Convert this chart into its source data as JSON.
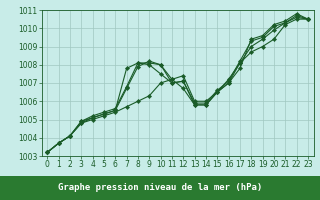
{
  "title": "Graphe pression niveau de la mer (hPa)",
  "bg_color": "#c8ece8",
  "grid_color": "#a0c8c0",
  "line_color": "#1a5c28",
  "xlim": [
    -0.5,
    23.5
  ],
  "ylim": [
    1003,
    1011
  ],
  "xticks": [
    0,
    1,
    2,
    3,
    4,
    5,
    6,
    7,
    8,
    9,
    10,
    11,
    12,
    13,
    14,
    15,
    16,
    17,
    18,
    19,
    20,
    21,
    22,
    23
  ],
  "yticks": [
    1003,
    1004,
    1005,
    1006,
    1007,
    1008,
    1009,
    1010,
    1011
  ],
  "series": [
    [
      1003.2,
      1003.7,
      1004.1,
      1004.8,
      1005.0,
      1005.2,
      1005.4,
      1005.7,
      1006.0,
      1006.3,
      1007.0,
      1007.2,
      1007.4,
      1006.0,
      1006.0,
      1006.5,
      1007.2,
      1008.1,
      1008.7,
      1009.0,
      1009.4,
      1010.2,
      1010.5,
      1010.5
    ],
    [
      1003.2,
      1003.7,
      1004.1,
      1004.8,
      1005.1,
      1005.3,
      1005.5,
      1007.8,
      1008.1,
      1008.0,
      1007.5,
      1007.0,
      1007.1,
      1005.8,
      1005.8,
      1006.5,
      1007.0,
      1008.1,
      1009.0,
      1009.4,
      1009.9,
      1010.3,
      1010.6,
      1010.5
    ],
    [
      1003.2,
      1003.7,
      1004.1,
      1004.9,
      1005.1,
      1005.3,
      1005.5,
      1006.7,
      1007.9,
      1008.2,
      1008.0,
      1007.0,
      1007.1,
      1005.9,
      1005.9,
      1006.6,
      1007.1,
      1008.2,
      1009.3,
      1009.5,
      1010.1,
      1010.3,
      1010.7,
      1010.5
    ],
    [
      1003.2,
      1003.7,
      1004.1,
      1004.9,
      1005.2,
      1005.4,
      1005.6,
      1006.8,
      1008.1,
      1008.1,
      1008.0,
      1007.2,
      1006.7,
      1005.8,
      1005.8,
      1006.5,
      1007.0,
      1007.8,
      1009.4,
      1009.6,
      1010.2,
      1010.4,
      1010.8,
      1010.5
    ]
  ],
  "marker": "D",
  "markersize": 2.2,
  "linewidth": 0.8,
  "tick_fontsize": 5.5,
  "label_fontsize": 6.5,
  "bottom_bar_color": "#2a7a30",
  "bottom_bar_height": 0.12
}
